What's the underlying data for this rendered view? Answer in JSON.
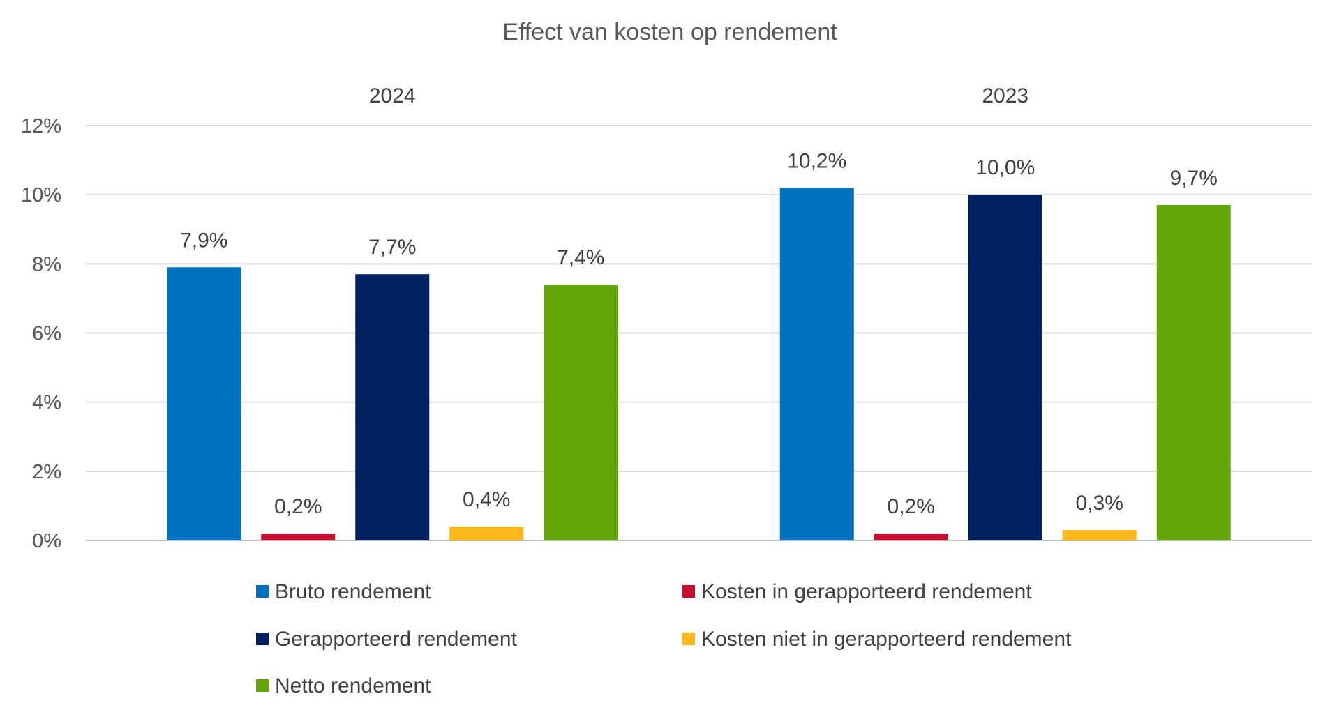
{
  "chart_data": {
    "type": "bar",
    "title": "Effect van kosten op rendement",
    "categories": [
      "2024",
      "2023"
    ],
    "series": [
      {
        "name": "Bruto rendement",
        "color": "#0070C0",
        "values": [
          7.9,
          10.2
        ],
        "labels": [
          "7,9%",
          "10,2%"
        ]
      },
      {
        "name": "Kosten in gerapporteerd rendement",
        "color": "#C8102E",
        "values": [
          0.2,
          0.2
        ],
        "labels": [
          "0,2%",
          "0,2%"
        ]
      },
      {
        "name": "Gerapporteerd rendement",
        "color": "#002060",
        "values": [
          7.7,
          10.0
        ],
        "labels": [
          "7,7%",
          "10,0%"
        ]
      },
      {
        "name": "Kosten niet in gerapporteerd rendement",
        "color": "#FFB81C",
        "values": [
          0.4,
          0.3
        ],
        "labels": [
          "0,4%",
          "0,3%"
        ]
      },
      {
        "name": "Netto rendement",
        "color": "#62A60A",
        "values": [
          7.4,
          9.7
        ],
        "labels": [
          "7,4%",
          "9,7%"
        ]
      }
    ],
    "ylim": [
      0,
      12
    ],
    "yticks": [
      0,
      2,
      4,
      6,
      8,
      10,
      12
    ],
    "ytick_labels": [
      "0%",
      "2%",
      "4%",
      "6%",
      "8%",
      "10%",
      "12%"
    ],
    "xlabel": "",
    "ylabel": "",
    "grid": true,
    "legend_position": "bottom"
  }
}
